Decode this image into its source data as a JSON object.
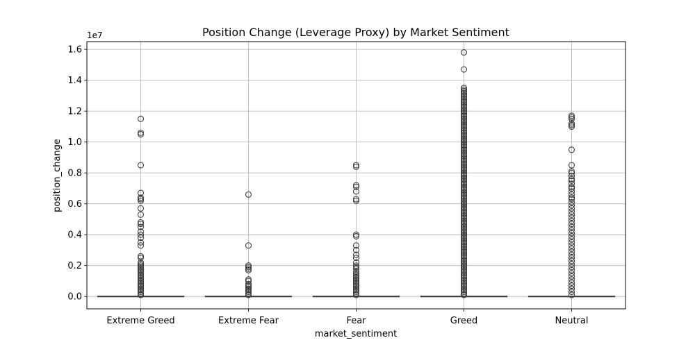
{
  "chart_data": {
    "type": "box",
    "title": "Position Change (Leverage Proxy) by Market Sentiment",
    "xlabel": "market_sentiment",
    "ylabel": "position_change",
    "y_multiplier_label": "1e7",
    "ylim": [
      -0.08,
      1.65
    ],
    "y_ticks": [
      0.0,
      0.2,
      0.4,
      0.6,
      0.8,
      1.0,
      1.2,
      1.4,
      1.6
    ],
    "y_tick_labels": [
      "0.0",
      "0.2",
      "0.4",
      "0.6",
      "0.8",
      "1.0",
      "1.2",
      "1.4",
      "1.6"
    ],
    "grid": true,
    "categories": [
      "Extreme Greed",
      "Extreme Fear",
      "Fear",
      "Greed",
      "Neutral"
    ],
    "boxes": [
      {
        "name": "Extreme Greed",
        "q1": 0.0,
        "median": 0.0,
        "q3": 0.0,
        "whisker_low": 0.0,
        "whisker_high": 0.0,
        "outliers": [
          1.15,
          1.06,
          1.05,
          0.85,
          0.67,
          0.64,
          0.63,
          0.62,
          0.57,
          0.53,
          0.48,
          0.47,
          0.45,
          0.42,
          0.4,
          0.38,
          0.35,
          0.33,
          0.26,
          0.25,
          0.22,
          0.21,
          0.2,
          0.19,
          0.18,
          0.17,
          0.16,
          0.15,
          0.14,
          0.13,
          0.12,
          0.11,
          0.1,
          0.09,
          0.08,
          0.07,
          0.06,
          0.05,
          0.04,
          0.03,
          0.02,
          0.01
        ]
      },
      {
        "name": "Extreme Fear",
        "q1": 0.0,
        "median": 0.0,
        "q3": 0.0,
        "whisker_low": 0.0,
        "whisker_high": 0.0,
        "outliers": [
          0.66,
          0.33,
          0.2,
          0.19,
          0.18,
          0.17,
          0.11,
          0.1,
          0.08,
          0.07,
          0.06,
          0.05,
          0.04,
          0.03,
          0.02,
          0.01
        ]
      },
      {
        "name": "Fear",
        "q1": 0.0,
        "median": 0.0,
        "q3": 0.0,
        "whisker_low": 0.0,
        "whisker_high": 0.0,
        "outliers": [
          0.85,
          0.84,
          0.72,
          0.71,
          0.68,
          0.63,
          0.62,
          0.4,
          0.39,
          0.33,
          0.3,
          0.27,
          0.25,
          0.22,
          0.2,
          0.19,
          0.18,
          0.16,
          0.15,
          0.14,
          0.13,
          0.12,
          0.11,
          0.1,
          0.09,
          0.08,
          0.07,
          0.06,
          0.05,
          0.04,
          0.03,
          0.02,
          0.01
        ]
      },
      {
        "name": "Greed",
        "q1": 0.0,
        "median": 0.0,
        "q3": 0.0,
        "whisker_low": 0.0,
        "whisker_high": 0.0,
        "outliers": [
          1.58,
          1.47,
          1.35,
          1.34,
          1.33,
          1.32,
          1.31,
          1.3,
          1.29,
          1.28,
          1.27,
          1.26,
          1.25,
          1.24,
          1.23,
          1.22,
          1.21,
          1.2,
          1.19,
          1.18,
          1.17,
          1.16,
          1.15,
          1.14,
          1.13,
          1.12,
          1.11,
          1.1,
          1.09,
          1.08,
          1.07,
          1.06,
          1.05,
          1.04,
          1.03,
          1.02,
          1.01,
          1.0,
          0.99,
          0.98,
          0.97,
          0.96,
          0.95,
          0.94,
          0.93,
          0.92,
          0.91,
          0.9,
          0.89,
          0.88,
          0.87,
          0.86,
          0.85,
          0.84,
          0.83,
          0.82,
          0.81,
          0.8,
          0.79,
          0.78,
          0.77,
          0.76,
          0.75,
          0.74,
          0.73,
          0.72,
          0.71,
          0.7,
          0.69,
          0.68,
          0.67,
          0.66,
          0.65,
          0.64,
          0.63,
          0.62,
          0.61,
          0.6,
          0.59,
          0.58,
          0.57,
          0.56,
          0.55,
          0.54,
          0.53,
          0.52,
          0.51,
          0.5,
          0.49,
          0.48,
          0.47,
          0.46,
          0.45,
          0.44,
          0.43,
          0.42,
          0.41,
          0.4,
          0.39,
          0.38,
          0.37,
          0.36,
          0.35,
          0.34,
          0.33,
          0.32,
          0.31,
          0.3,
          0.29,
          0.28,
          0.27,
          0.26,
          0.25,
          0.24,
          0.23,
          0.22,
          0.21,
          0.2,
          0.19,
          0.18,
          0.17,
          0.16,
          0.15,
          0.14,
          0.13,
          0.12,
          0.11,
          0.1,
          0.09,
          0.08,
          0.07,
          0.06,
          0.05,
          0.04,
          0.03,
          0.02,
          0.01
        ]
      },
      {
        "name": "Neutral",
        "q1": 0.0,
        "median": 0.0,
        "q3": 0.0,
        "whisker_low": 0.0,
        "whisker_high": 0.0,
        "outliers": [
          1.17,
          1.16,
          1.15,
          1.12,
          1.11,
          1.1,
          0.95,
          0.85,
          0.81,
          0.8,
          0.78,
          0.76,
          0.75,
          0.73,
          0.71,
          0.7,
          0.68,
          0.66,
          0.64,
          0.63,
          0.61,
          0.59,
          0.57,
          0.55,
          0.53,
          0.51,
          0.49,
          0.47,
          0.45,
          0.43,
          0.41,
          0.39,
          0.37,
          0.35,
          0.33,
          0.31,
          0.29,
          0.27,
          0.25,
          0.23,
          0.21,
          0.19,
          0.17,
          0.15,
          0.13,
          0.11,
          0.09,
          0.07,
          0.05,
          0.03,
          0.01
        ]
      }
    ]
  }
}
